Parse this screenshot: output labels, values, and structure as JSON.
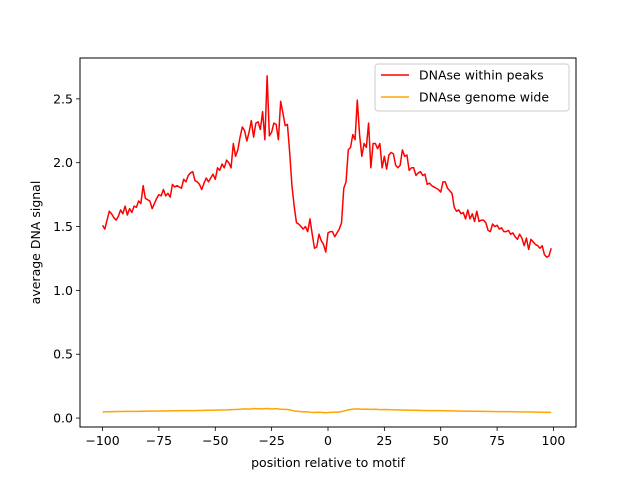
{
  "chart_data": {
    "type": "line",
    "title": "",
    "xlabel": "position relative to motif",
    "ylabel": "average DNA signal",
    "xlim": [
      -110,
      110
    ],
    "ylim": [
      -0.07,
      2.82
    ],
    "x_ticks": [
      -100,
      -75,
      -50,
      -25,
      0,
      25,
      50,
      75,
      100
    ],
    "x_tick_labels": [
      "−100",
      "−75",
      "−50",
      "−25",
      "0",
      "25",
      "50",
      "75",
      "100"
    ],
    "y_ticks": [
      0.0,
      0.5,
      1.0,
      1.5,
      2.0,
      2.5
    ],
    "y_tick_labels": [
      "0.0",
      "0.5",
      "1.0",
      "1.5",
      "2.0",
      "2.5"
    ],
    "grid": false,
    "legend_position": "top-right",
    "series": [
      {
        "name": "DNAse within peaks",
        "color": "#ff0000",
        "points": [
          [
            -100,
            1.51
          ],
          [
            -99,
            1.48
          ],
          [
            -98,
            1.55
          ],
          [
            -97,
            1.62
          ],
          [
            -96,
            1.6
          ],
          [
            -95,
            1.57
          ],
          [
            -94,
            1.55
          ],
          [
            -93,
            1.58
          ],
          [
            -92,
            1.63
          ],
          [
            -91,
            1.6
          ],
          [
            -90,
            1.66
          ],
          [
            -89,
            1.59
          ],
          [
            -88,
            1.64
          ],
          [
            -87,
            1.61
          ],
          [
            -86,
            1.66
          ],
          [
            -85,
            1.65
          ],
          [
            -84,
            1.7
          ],
          [
            -83,
            1.68
          ],
          [
            -82,
            1.82
          ],
          [
            -81,
            1.72
          ],
          [
            -80,
            1.71
          ],
          [
            -79,
            1.7
          ],
          [
            -78,
            1.64
          ],
          [
            -77,
            1.68
          ],
          [
            -76,
            1.72
          ],
          [
            -75,
            1.75
          ],
          [
            -74,
            1.74
          ],
          [
            -73,
            1.79
          ],
          [
            -72,
            1.74
          ],
          [
            -71,
            1.76
          ],
          [
            -70,
            1.73
          ],
          [
            -69,
            1.83
          ],
          [
            -68,
            1.81
          ],
          [
            -67,
            1.82
          ],
          [
            -66,
            1.81
          ],
          [
            -65,
            1.8
          ],
          [
            -64,
            1.87
          ],
          [
            -63,
            1.85
          ],
          [
            -62,
            1.9
          ],
          [
            -61,
            1.92
          ],
          [
            -60,
            1.93
          ],
          [
            -59,
            1.86
          ],
          [
            -58,
            1.85
          ],
          [
            -57,
            1.83
          ],
          [
            -56,
            1.79
          ],
          [
            -55,
            1.84
          ],
          [
            -54,
            1.88
          ],
          [
            -53,
            1.85
          ],
          [
            -52,
            1.88
          ],
          [
            -51,
            1.91
          ],
          [
            -50,
            1.87
          ],
          [
            -49,
            1.96
          ],
          [
            -48,
            1.94
          ],
          [
            -47,
            1.99
          ],
          [
            -46,
            1.96
          ],
          [
            -45,
            2.02
          ],
          [
            -44,
            2.0
          ],
          [
            -43,
            1.96
          ],
          [
            -42,
            2.15
          ],
          [
            -41,
            2.05
          ],
          [
            -40,
            2.1
          ],
          [
            -39,
            2.2
          ],
          [
            -38,
            2.28
          ],
          [
            -37,
            2.25
          ],
          [
            -36,
            2.17
          ],
          [
            -35,
            2.24
          ],
          [
            -34,
            2.33
          ],
          [
            -33,
            2.2
          ],
          [
            -32,
            2.31
          ],
          [
            -31,
            2.32
          ],
          [
            -30,
            2.26
          ],
          [
            -29,
            2.4
          ],
          [
            -28,
            2.18
          ],
          [
            -27,
            2.68
          ],
          [
            -26,
            2.21
          ],
          [
            -25,
            2.24
          ],
          [
            -24,
            2.31
          ],
          [
            -23,
            2.3
          ],
          [
            -22,
            2.18
          ],
          [
            -21,
            2.48
          ],
          [
            -20,
            2.39
          ],
          [
            -19,
            2.29
          ],
          [
            -18,
            2.3
          ],
          [
            -17,
            2.08
          ],
          [
            -16,
            1.82
          ],
          [
            -15,
            1.66
          ],
          [
            -14,
            1.53
          ],
          [
            -13,
            1.52
          ],
          [
            -12,
            1.5
          ],
          [
            -11,
            1.48
          ],
          [
            -10,
            1.5
          ],
          [
            -9,
            1.46
          ],
          [
            -8,
            1.56
          ],
          [
            -7,
            1.44
          ],
          [
            -6,
            1.33
          ],
          [
            -5,
            1.34
          ],
          [
            -4,
            1.44
          ],
          [
            -3,
            1.39
          ],
          [
            -2,
            1.36
          ],
          [
            -1,
            1.3
          ],
          [
            0,
            1.45
          ],
          [
            1,
            1.46
          ],
          [
            2,
            1.46
          ],
          [
            3,
            1.42
          ],
          [
            4,
            1.45
          ],
          [
            5,
            1.48
          ],
          [
            6,
            1.53
          ],
          [
            7,
            1.8
          ],
          [
            8,
            1.85
          ],
          [
            9,
            2.1
          ],
          [
            10,
            2.12
          ],
          [
            11,
            2.22
          ],
          [
            12,
            2.18
          ],
          [
            13,
            2.49
          ],
          [
            14,
            2.22
          ],
          [
            15,
            2.05
          ],
          [
            16,
            2.15
          ],
          [
            17,
            2.12
          ],
          [
            18,
            2.31
          ],
          [
            19,
            1.96
          ],
          [
            20,
            2.15
          ],
          [
            21,
            2.15
          ],
          [
            22,
            2.11
          ],
          [
            23,
            2.15
          ],
          [
            24,
            1.96
          ],
          [
            25,
            2.05
          ],
          [
            26,
            1.95
          ],
          [
            27,
            2.06
          ],
          [
            28,
            2.08
          ],
          [
            29,
            2.07
          ],
          [
            30,
            1.98
          ],
          [
            31,
            1.96
          ],
          [
            32,
            1.98
          ],
          [
            33,
            2.1
          ],
          [
            34,
            2.05
          ],
          [
            35,
            2.06
          ],
          [
            36,
            1.94
          ],
          [
            37,
            1.96
          ],
          [
            38,
            1.96
          ],
          [
            39,
            1.9
          ],
          [
            40,
            1.92
          ],
          [
            41,
            1.93
          ],
          [
            42,
            1.9
          ],
          [
            43,
            1.91
          ],
          [
            44,
            1.83
          ],
          [
            45,
            1.84
          ],
          [
            46,
            1.82
          ],
          [
            47,
            1.81
          ],
          [
            48,
            1.8
          ],
          [
            49,
            1.79
          ],
          [
            50,
            1.77
          ],
          [
            51,
            1.85
          ],
          [
            52,
            1.85
          ],
          [
            53,
            1.8
          ],
          [
            54,
            1.78
          ],
          [
            55,
            1.76
          ],
          [
            56,
            1.65
          ],
          [
            57,
            1.62
          ],
          [
            58,
            1.63
          ],
          [
            59,
            1.6
          ],
          [
            60,
            1.61
          ],
          [
            61,
            1.56
          ],
          [
            62,
            1.63
          ],
          [
            63,
            1.56
          ],
          [
            64,
            1.6
          ],
          [
            65,
            1.54
          ],
          [
            66,
            1.62
          ],
          [
            67,
            1.54
          ],
          [
            68,
            1.55
          ],
          [
            69,
            1.55
          ],
          [
            70,
            1.53
          ],
          [
            71,
            1.47
          ],
          [
            72,
            1.46
          ],
          [
            73,
            1.52
          ],
          [
            74,
            1.5
          ],
          [
            75,
            1.51
          ],
          [
            76,
            1.48
          ],
          [
            77,
            1.49
          ],
          [
            78,
            1.46
          ],
          [
            79,
            1.46
          ],
          [
            80,
            1.47
          ],
          [
            81,
            1.44
          ],
          [
            82,
            1.45
          ],
          [
            83,
            1.42
          ],
          [
            84,
            1.4
          ],
          [
            85,
            1.44
          ],
          [
            86,
            1.41
          ],
          [
            87,
            1.35
          ],
          [
            88,
            1.41
          ],
          [
            89,
            1.32
          ],
          [
            90,
            1.4
          ],
          [
            91,
            1.38
          ],
          [
            92,
            1.36
          ],
          [
            93,
            1.35
          ],
          [
            94,
            1.33
          ],
          [
            95,
            1.35
          ],
          [
            96,
            1.28
          ],
          [
            97,
            1.26
          ],
          [
            98,
            1.27
          ],
          [
            99,
            1.33
          ]
        ]
      },
      {
        "name": "DNAse genome wide",
        "color": "#ffa500",
        "points": [
          [
            -100,
            0.048
          ],
          [
            -95,
            0.05
          ],
          [
            -90,
            0.052
          ],
          [
            -85,
            0.052
          ],
          [
            -80,
            0.054
          ],
          [
            -75,
            0.055
          ],
          [
            -70,
            0.056
          ],
          [
            -65,
            0.058
          ],
          [
            -60,
            0.058
          ],
          [
            -55,
            0.06
          ],
          [
            -50,
            0.062
          ],
          [
            -45,
            0.064
          ],
          [
            -40,
            0.068
          ],
          [
            -37,
            0.072
          ],
          [
            -35,
            0.07
          ],
          [
            -33,
            0.074
          ],
          [
            -31,
            0.073
          ],
          [
            -29,
            0.072
          ],
          [
            -27,
            0.075
          ],
          [
            -25,
            0.071
          ],
          [
            -23,
            0.074
          ],
          [
            -21,
            0.069
          ],
          [
            -19,
            0.068
          ],
          [
            -17,
            0.065
          ],
          [
            -15,
            0.055
          ],
          [
            -13,
            0.052
          ],
          [
            -11,
            0.048
          ],
          [
            -9,
            0.049
          ],
          [
            -7,
            0.044
          ],
          [
            -5,
            0.046
          ],
          [
            -3,
            0.045
          ],
          [
            -1,
            0.042
          ],
          [
            1,
            0.045
          ],
          [
            3,
            0.046
          ],
          [
            5,
            0.047
          ],
          [
            7,
            0.055
          ],
          [
            9,
            0.064
          ],
          [
            11,
            0.07
          ],
          [
            13,
            0.072
          ],
          [
            15,
            0.069
          ],
          [
            17,
            0.07
          ],
          [
            19,
            0.068
          ],
          [
            21,
            0.069
          ],
          [
            23,
            0.066
          ],
          [
            25,
            0.067
          ],
          [
            30,
            0.064
          ],
          [
            35,
            0.062
          ],
          [
            40,
            0.06
          ],
          [
            45,
            0.058
          ],
          [
            50,
            0.058
          ],
          [
            55,
            0.056
          ],
          [
            60,
            0.054
          ],
          [
            65,
            0.053
          ],
          [
            70,
            0.052
          ],
          [
            75,
            0.05
          ],
          [
            80,
            0.05
          ],
          [
            85,
            0.048
          ],
          [
            90,
            0.047
          ],
          [
            95,
            0.046
          ],
          [
            99,
            0.045
          ]
        ]
      }
    ]
  }
}
